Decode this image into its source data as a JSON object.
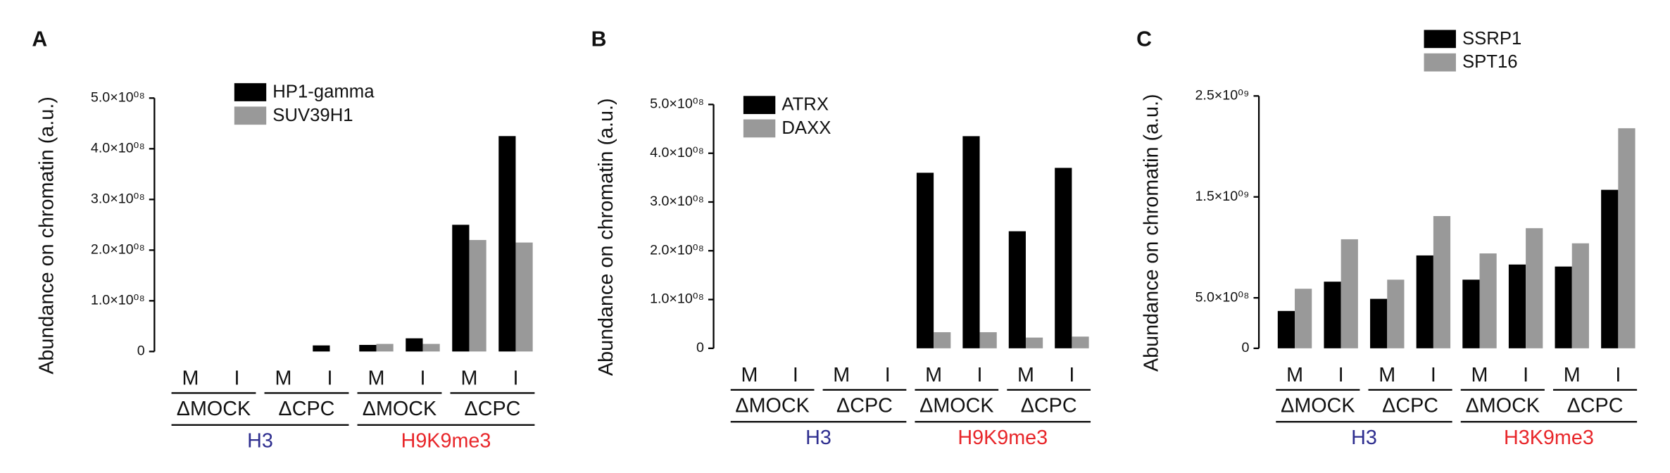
{
  "chart_data": [
    {
      "type": "bar",
      "panel_label": "A",
      "ylabel": "Abundance on chromatin (a.u.)",
      "categories": [
        "M",
        "I",
        "M",
        "I",
        "M",
        "I",
        "M",
        "I"
      ],
      "subgroups": [
        "ΔMOCK",
        "ΔCPC",
        "ΔMOCK",
        "ΔCPC"
      ],
      "groups": [
        {
          "label": "H3",
          "color": "#2e2e8f"
        },
        {
          "label": "H9K9me3",
          "color": "#e8262a"
        }
      ],
      "series": [
        {
          "name": "HP1-gamma",
          "color": "#000000",
          "values": [
            0,
            0,
            0,
            12000000,
            13000000,
            26000000,
            250000000,
            425000000
          ]
        },
        {
          "name": "SUV39H1",
          "color": "#999999",
          "values": [
            0,
            0,
            0,
            0,
            15000000,
            15000000,
            220000000,
            215000000
          ]
        }
      ],
      "ylim": [
        0,
        500000000
      ],
      "yticks": [
        0,
        {
          "value": 100000000,
          "label": "1.0×10⁰⁸"
        },
        {
          "value": 200000000,
          "label": "2.0×10⁰⁸"
        },
        {
          "value": 300000000,
          "label": "3.0×10⁰⁸"
        },
        {
          "value": 400000000,
          "label": "4.0×10⁰⁸"
        },
        {
          "value": 500000000,
          "label": "5.0×10⁰⁸"
        }
      ],
      "legend": "top-center"
    },
    {
      "type": "bar",
      "panel_label": "B",
      "ylabel": "Abundance on chromatin (a.u.)",
      "categories": [
        "M",
        "I",
        "M",
        "I",
        "M",
        "I",
        "M",
        "I"
      ],
      "subgroups": [
        "ΔMOCK",
        "ΔCPC",
        "ΔMOCK",
        "ΔCPC"
      ],
      "groups": [
        {
          "label": "H3",
          "color": "#2e2e8f"
        },
        {
          "label": "H9K9me3",
          "color": "#e8262a"
        }
      ],
      "series": [
        {
          "name": "ATRX",
          "color": "#000000",
          "values": [
            0,
            0,
            0,
            0,
            360000000,
            435000000,
            240000000,
            370000000
          ]
        },
        {
          "name": "DAXX",
          "color": "#999999",
          "values": [
            0,
            0,
            0,
            0,
            33000000,
            33000000,
            22000000,
            24000000
          ]
        }
      ],
      "ylim": [
        0,
        500000000
      ],
      "yticks": [
        0,
        {
          "value": 100000000,
          "label": "1.0×10⁰⁸"
        },
        {
          "value": 200000000,
          "label": "2.0×10⁰⁸"
        },
        {
          "value": 300000000,
          "label": "3.0×10⁰⁸"
        },
        {
          "value": 400000000,
          "label": "4.0×10⁰⁸"
        },
        {
          "value": 500000000,
          "label": "5.0×10⁰⁸"
        }
      ],
      "legend": "top-left"
    },
    {
      "type": "bar",
      "panel_label": "C",
      "ylabel": "Abundance on chromatin (a.u.)",
      "categories": [
        "M",
        "I",
        "M",
        "I",
        "M",
        "I",
        "M",
        "I"
      ],
      "subgroups": [
        "ΔMOCK",
        "ΔCPC",
        "ΔMOCK",
        "ΔCPC"
      ],
      "groups": [
        {
          "label": "H3",
          "color": "#2e2e8f"
        },
        {
          "label": "H3K9me3",
          "color": "#e8262a"
        }
      ],
      "series": [
        {
          "name": "SSRP1",
          "color": "#000000",
          "values": [
            370000000,
            660000000,
            490000000,
            920000000,
            680000000,
            830000000,
            810000000,
            1570000000
          ]
        },
        {
          "name": "SPT16",
          "color": "#999999",
          "values": [
            590000000,
            1080000000,
            680000000,
            1310000000,
            940000000,
            1190000000,
            1040000000,
            2180000000
          ]
        }
      ],
      "ylim": [
        0,
        2500000000
      ],
      "yticks": [
        0,
        {
          "value": 500000000,
          "label": "5.0×10⁰⁸"
        },
        {
          "value": 1500000000,
          "label": "1.5×10⁰⁹"
        },
        {
          "value": 2500000000,
          "label": "2.5×10⁰⁹"
        }
      ],
      "legend": "above-center"
    }
  ]
}
